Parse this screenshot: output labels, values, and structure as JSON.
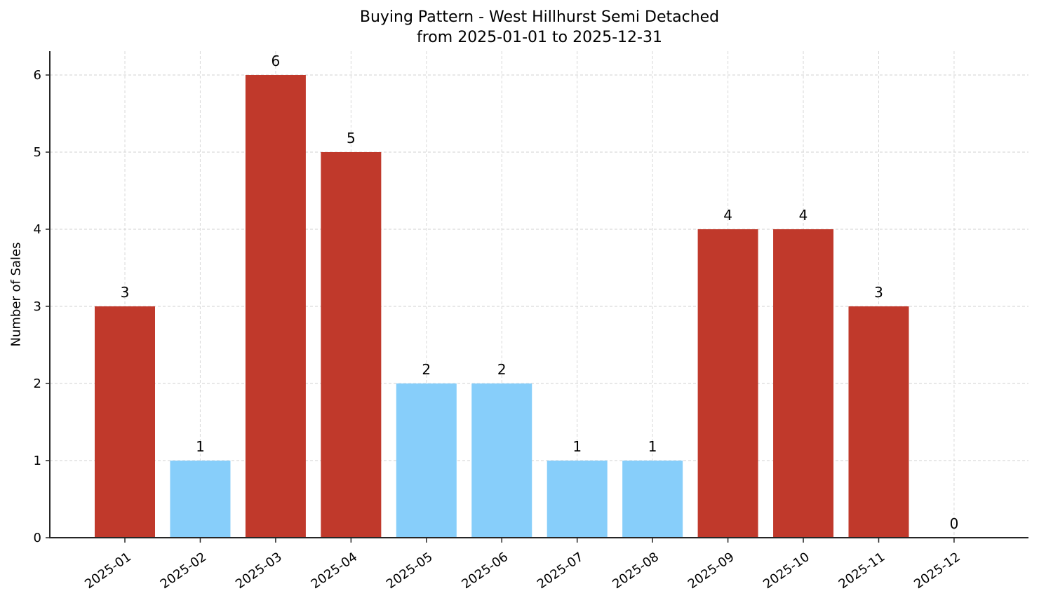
{
  "chart_data": {
    "type": "bar",
    "title": "Buying Pattern - West Hillhurst Semi Detached",
    "subtitle": "from 2025-01-01 to 2025-12-31",
    "xlabel": "",
    "ylabel": "Number of Sales",
    "categories": [
      "2025-01",
      "2025-02",
      "2025-03",
      "2025-04",
      "2025-05",
      "2025-06",
      "2025-07",
      "2025-08",
      "2025-09",
      "2025-10",
      "2025-11",
      "2025-12"
    ],
    "values": [
      3,
      1,
      6,
      5,
      2,
      2,
      1,
      1,
      4,
      4,
      3,
      0
    ],
    "bar_colors": [
      "#c0392b",
      "#87cefa",
      "#c0392b",
      "#c0392b",
      "#87cefa",
      "#87cefa",
      "#87cefa",
      "#87cefa",
      "#c0392b",
      "#c0392b",
      "#c0392b",
      "#c0392b"
    ],
    "data_labels": [
      "3",
      "1",
      "6",
      "5",
      "2",
      "2",
      "1",
      "1",
      "4",
      "4",
      "3",
      "0"
    ],
    "yticks": [
      0,
      1,
      2,
      3,
      4,
      5,
      6
    ],
    "ylim": [
      0,
      6.3
    ],
    "grid": true,
    "legend": null,
    "colors": {
      "high": "#c0392b",
      "low": "#87cefa",
      "grid": "#d0d0d0",
      "axis": "#262626"
    }
  }
}
